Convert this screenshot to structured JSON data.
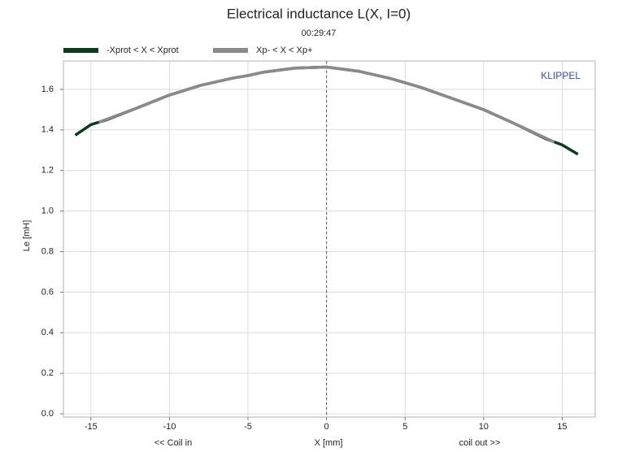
{
  "chart_data": {
    "type": "line",
    "title": "Electrical inductance L(X, I=0)",
    "subtitle": "00:29:47",
    "x_label": "X [mm]",
    "y_label": "Le [mH]",
    "x_left_note": "<< Coil in",
    "x_right_note": "coil out >>",
    "brand": "KLIPPEL",
    "vline": 0,
    "series": [
      {
        "name": "-Xprot < X < Xprot",
        "color": "#0f3a1e",
        "x": [
          -16,
          -15,
          -14,
          -12,
          -10,
          -8,
          -6,
          -5,
          -4,
          -2,
          0,
          2,
          4,
          6,
          8,
          10,
          12,
          14,
          15,
          16
        ],
        "values": [
          1.374,
          1.426,
          1.45,
          1.51,
          1.572,
          1.62,
          1.655,
          1.668,
          1.685,
          1.705,
          1.71,
          1.69,
          1.655,
          1.61,
          1.555,
          1.5,
          1.43,
          1.355,
          1.326,
          1.28
        ]
      },
      {
        "name": "Xp- < X < Xp+",
        "color": "#8a8a8a",
        "x": [
          -14.5,
          -12,
          -10,
          -8,
          -6,
          -5,
          -4,
          -2,
          0,
          2,
          4,
          6,
          8,
          10,
          12,
          14.5
        ],
        "values": [
          1.438,
          1.51,
          1.572,
          1.62,
          1.655,
          1.668,
          1.685,
          1.705,
          1.71,
          1.69,
          1.655,
          1.61,
          1.555,
          1.5,
          1.43,
          1.34
        ]
      }
    ],
    "xlim": [
      -16.75,
      17.1
    ],
    "ylim": [
      -0.016,
      1.74
    ],
    "xticks": [
      -15,
      -10,
      -5,
      0,
      5,
      10,
      15
    ],
    "yticks": [
      {
        "value": 0,
        "label": "0.0"
      },
      0.2,
      0.4,
      0.6,
      0.8,
      {
        "value": 1,
        "label": "1.0"
      },
      1.2,
      1.4,
      1.6
    ],
    "grid": true
  }
}
